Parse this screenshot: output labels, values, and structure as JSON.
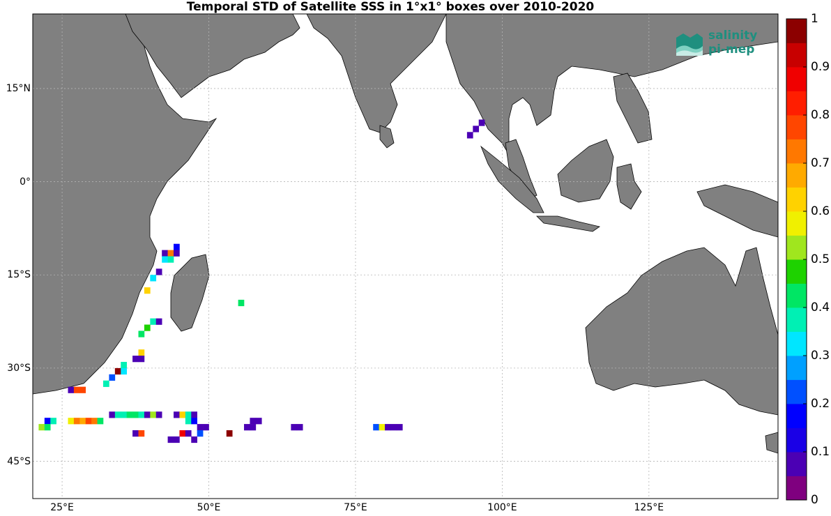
{
  "title": "Temporal STD of Satellite SSS in 1°x1° boxes over 2010-2020",
  "map": {
    "projection": "equirectangular",
    "lon_range": [
      20,
      147
    ],
    "lat_range": [
      -51,
      27
    ],
    "lat_ticks": [
      {
        "lat": 15,
        "label": "15°N"
      },
      {
        "lat": 0,
        "label": "0°"
      },
      {
        "lat": -15,
        "label": "15°S"
      },
      {
        "lat": -30,
        "label": "30°S"
      },
      {
        "lat": -45,
        "label": "45°S"
      }
    ],
    "lon_ticks": [
      {
        "lon": 25,
        "label": "25°E"
      },
      {
        "lon": 50,
        "label": "50°E"
      },
      {
        "lon": 75,
        "label": "75°E"
      },
      {
        "lon": 100,
        "label": "100°E"
      },
      {
        "lon": 125,
        "label": "125°E"
      }
    ],
    "grid": true,
    "land_color": "#808080",
    "ocean_color": "#ffffff"
  },
  "colorbar": {
    "range": [
      0,
      1
    ],
    "tick_labels": [
      "0",
      "0.1",
      "0.2",
      "0.3",
      "0.4",
      "0.5",
      "0.6",
      "0.7",
      "0.8",
      "0.9",
      "1"
    ],
    "colors": [
      "#7f007f",
      "#4b00b4",
      "#1a00e6",
      "#0000ff",
      "#0050ff",
      "#00a0ff",
      "#00e6ff",
      "#00f0b4",
      "#00e664",
      "#1ed200",
      "#a0e61e",
      "#f0f000",
      "#ffd200",
      "#ffaa00",
      "#ff7800",
      "#ff4600",
      "#ff1e00",
      "#f00000",
      "#c80000",
      "#8c0000"
    ]
  },
  "logo": {
    "line1": "salinity",
    "line2": "pi-mep"
  },
  "chart_data": {
    "type": "heatmap",
    "title": "Temporal STD of Satellite SSS in 1°x1° boxes over 2010-2020",
    "cell_size_deg": 1,
    "value_range": [
      0,
      1
    ],
    "cells": [
      {
        "lon": 96,
        "lat": 9,
        "v": 0.05
      },
      {
        "lon": 95,
        "lat": 8,
        "v": 0.05
      },
      {
        "lon": 94,
        "lat": 7,
        "v": 0.05
      },
      {
        "lon": 44,
        "lat": -11,
        "v": 0.15
      },
      {
        "lon": 42,
        "lat": -12,
        "v": 0.05
      },
      {
        "lon": 43,
        "lat": -12,
        "v": 0.7
      },
      {
        "lon": 44,
        "lat": -12,
        "v": 0.05
      },
      {
        "lon": 42,
        "lat": -13,
        "v": 0.3
      },
      {
        "lon": 43,
        "lat": -13,
        "v": 0.35
      },
      {
        "lon": 41,
        "lat": -15,
        "v": 0.05
      },
      {
        "lon": 40,
        "lat": -16,
        "v": 0.3
      },
      {
        "lon": 39,
        "lat": -18,
        "v": 0.6
      },
      {
        "lon": 55,
        "lat": -20,
        "v": 0.4
      },
      {
        "lon": 40,
        "lat": -23,
        "v": 0.35
      },
      {
        "lon": 41,
        "lat": -23,
        "v": 0.05
      },
      {
        "lon": 39,
        "lat": -24,
        "v": 0.45
      },
      {
        "lon": 38,
        "lat": -25,
        "v": 0.4
      },
      {
        "lon": 38,
        "lat": -28,
        "v": 0.6
      },
      {
        "lon": 37,
        "lat": -29,
        "v": 0.05
      },
      {
        "lon": 38,
        "lat": -29,
        "v": 0.05
      },
      {
        "lon": 35,
        "lat": -30,
        "v": 0.35
      },
      {
        "lon": 34,
        "lat": -31,
        "v": 0.95
      },
      {
        "lon": 35,
        "lat": -31,
        "v": 0.3
      },
      {
        "lon": 33,
        "lat": -32,
        "v": 0.2
      },
      {
        "lon": 32,
        "lat": -33,
        "v": 0.35
      },
      {
        "lon": 26,
        "lat": -34,
        "v": 0.05
      },
      {
        "lon": 27,
        "lat": -34,
        "v": 0.75
      },
      {
        "lon": 28,
        "lat": -34,
        "v": 0.75
      },
      {
        "lon": 33,
        "lat": -38,
        "v": 0.05
      },
      {
        "lon": 34,
        "lat": -38,
        "v": 0.35
      },
      {
        "lon": 35,
        "lat": -38,
        "v": 0.35
      },
      {
        "lon": 36,
        "lat": -38,
        "v": 0.4
      },
      {
        "lon": 37,
        "lat": -38,
        "v": 0.4
      },
      {
        "lon": 38,
        "lat": -38,
        "v": 0.35
      },
      {
        "lon": 39,
        "lat": -38,
        "v": 0.05
      },
      {
        "lon": 40,
        "lat": -38,
        "v": 0.5
      },
      {
        "lon": 41,
        "lat": -38,
        "v": 0.05
      },
      {
        "lon": 44,
        "lat": -38,
        "v": 0.05
      },
      {
        "lon": 45,
        "lat": -38,
        "v": 0.6
      },
      {
        "lon": 46,
        "lat": -38,
        "v": 0.35
      },
      {
        "lon": 47,
        "lat": -38,
        "v": 0.05
      },
      {
        "lon": 22,
        "lat": -39,
        "v": 0.15
      },
      {
        "lon": 23,
        "lat": -39,
        "v": 0.35
      },
      {
        "lon": 26,
        "lat": -39,
        "v": 0.55
      },
      {
        "lon": 27,
        "lat": -39,
        "v": 0.7
      },
      {
        "lon": 28,
        "lat": -39,
        "v": 0.65
      },
      {
        "lon": 29,
        "lat": -39,
        "v": 0.75
      },
      {
        "lon": 30,
        "lat": -39,
        "v": 0.7
      },
      {
        "lon": 31,
        "lat": -39,
        "v": 0.4
      },
      {
        "lon": 46,
        "lat": -39,
        "v": 0.35
      },
      {
        "lon": 47,
        "lat": -39,
        "v": 0.15
      },
      {
        "lon": 57,
        "lat": -39,
        "v": 0.05
      },
      {
        "lon": 58,
        "lat": -39,
        "v": 0.05
      },
      {
        "lon": 21,
        "lat": -40,
        "v": 0.5
      },
      {
        "lon": 22,
        "lat": -40,
        "v": 0.4
      },
      {
        "lon": 48,
        "lat": -40,
        "v": 0.05
      },
      {
        "lon": 49,
        "lat": -40,
        "v": 0.05
      },
      {
        "lon": 56,
        "lat": -40,
        "v": 0.05
      },
      {
        "lon": 57,
        "lat": -40,
        "v": 0.05
      },
      {
        "lon": 64,
        "lat": -40,
        "v": 0.05
      },
      {
        "lon": 65,
        "lat": -40,
        "v": 0.05
      },
      {
        "lon": 78,
        "lat": -40,
        "v": 0.2
      },
      {
        "lon": 79,
        "lat": -40,
        "v": 0.55
      },
      {
        "lon": 80,
        "lat": -40,
        "v": 0.05
      },
      {
        "lon": 81,
        "lat": -40,
        "v": 0.05
      },
      {
        "lon": 82,
        "lat": -40,
        "v": 0.05
      },
      {
        "lon": 37,
        "lat": -41,
        "v": 0.05
      },
      {
        "lon": 38,
        "lat": -41,
        "v": 0.75
      },
      {
        "lon": 45,
        "lat": -41,
        "v": 0.85
      },
      {
        "lon": 46,
        "lat": -41,
        "v": 0.05
      },
      {
        "lon": 48,
        "lat": -41,
        "v": 0.2
      },
      {
        "lon": 53,
        "lat": -41,
        "v": 0.95
      },
      {
        "lon": 43,
        "lat": -42,
        "v": 0.05
      },
      {
        "lon": 44,
        "lat": -42,
        "v": 0.05
      },
      {
        "lon": 47,
        "lat": -42,
        "v": 0.05
      }
    ]
  }
}
